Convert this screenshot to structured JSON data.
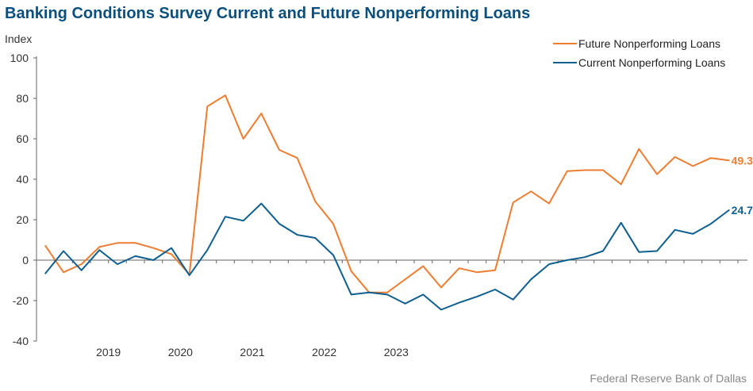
{
  "chart_data": {
    "type": "line",
    "title": "Banking Conditions Survey Current and Future Nonperforming Loans",
    "ylabel": "Index",
    "xlabel": "",
    "ylim": [
      -40,
      100
    ],
    "yticks": [
      "-40",
      "-20",
      "0",
      "20",
      "40",
      "60",
      "80",
      "100"
    ],
    "year_labels": [
      "2019",
      "2020",
      "2021",
      "2022",
      "2023"
    ],
    "x_start": "2018Q3",
    "grid": false,
    "legend_position": "top-right",
    "series": [
      {
        "name": "Future Nonperforming Loans",
        "color": "#ed7d31",
        "end_label": "49.3",
        "values": [
          7,
          -6,
          -2,
          6.5,
          8.5,
          8.5,
          6,
          3,
          -7,
          76,
          81.5,
          60,
          72.5,
          54.5,
          50.5,
          29,
          18,
          -5.5,
          -16,
          -16,
          -9.5,
          -3,
          -13.5,
          -4,
          -6,
          -5,
          28.5,
          34,
          28,
          44,
          44.5,
          44.5,
          37.5,
          55,
          42.5,
          51,
          46.5,
          50.5,
          49.3
        ]
      },
      {
        "name": "Current Nonperforming Loans",
        "color": "#0f5f8f",
        "end_label": "24.7",
        "values": [
          -6.5,
          4.5,
          -5,
          5,
          -2,
          2,
          0,
          6,
          -7.5,
          5,
          21.5,
          19.5,
          28,
          18,
          12.5,
          11,
          2.5,
          -17,
          -16,
          -17,
          -21.5,
          -17,
          -24.5,
          -21,
          -18,
          -14.5,
          -19.5,
          -9.5,
          -2,
          0,
          1.5,
          4.5,
          18.5,
          4,
          4.5,
          15,
          13,
          18,
          24.7
        ]
      }
    ]
  },
  "source": "Federal Reserve Bank of Dallas"
}
